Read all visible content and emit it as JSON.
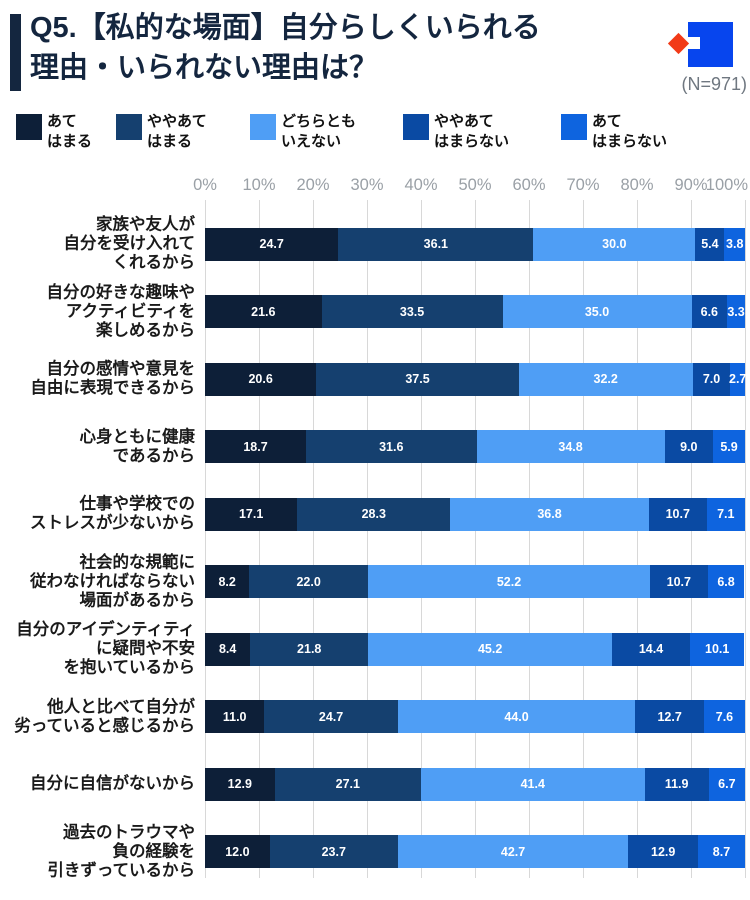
{
  "header": {
    "title_line1": "Q5.【私的な場面】自分らしくいられる",
    "title_line2": "理由・いられない理由は？",
    "sample_label": "(N=971)",
    "accent_color": "#14263f"
  },
  "logo": {
    "square_color": "#0745ee",
    "diamond_color": "#f23a17"
  },
  "legend": {
    "items": [
      {
        "line1": "あて",
        "line2": "はまる"
      },
      {
        "line1": "ややあて",
        "line2": "はまる"
      },
      {
        "line1": "どちらとも",
        "line2": "いえない"
      },
      {
        "line1": "ややあて",
        "line2": "はまらない"
      },
      {
        "line1": "あて",
        "line2": "はまらない"
      }
    ]
  },
  "axis": {
    "ticks": [
      "0%",
      "10%",
      "20%",
      "30%",
      "40%",
      "50%",
      "60%",
      "70%",
      "80%",
      "90%",
      "100%"
    ]
  },
  "chart_data": {
    "type": "bar",
    "orientation": "horizontal-stacked",
    "title": "Q5.【私的な場面】自分らしくいられる理由・いられない理由は？",
    "sample_size": "N=971",
    "xlim": [
      0,
      100
    ],
    "grid": true,
    "legend_position": "top",
    "colors": [
      "#0d1f38",
      "#15406f",
      "#4f9ef5",
      "#0a4aa3",
      "#0e64df"
    ],
    "series_names": [
      "あてはまる",
      "ややあてはまる",
      "どちらともいえない",
      "ややあてはまらない",
      "あてはまらない"
    ],
    "rows": [
      {
        "label_lines": [
          "家族や友人が",
          "自分を受け入れて",
          "くれるから"
        ],
        "values": [
          24.7,
          36.1,
          30.0,
          5.4,
          3.8
        ]
      },
      {
        "label_lines": [
          "自分の好きな趣味や",
          "アクティビティを",
          "楽しめるから"
        ],
        "values": [
          21.6,
          33.5,
          35.0,
          6.6,
          3.3
        ]
      },
      {
        "label_lines": [
          "自分の感情や意見を",
          "自由に表現できるから"
        ],
        "values": [
          20.6,
          37.5,
          32.2,
          7.0,
          2.7
        ]
      },
      {
        "label_lines": [
          "心身ともに健康",
          "であるから"
        ],
        "values": [
          18.7,
          31.6,
          34.8,
          9.0,
          5.9
        ]
      },
      {
        "label_lines": [
          "仕事や学校での",
          "ストレスが少ないから"
        ],
        "values": [
          17.1,
          28.3,
          36.8,
          10.7,
          7.1
        ]
      },
      {
        "label_lines": [
          "社会的な規範に",
          "従わなければならない",
          "場面があるから"
        ],
        "values": [
          8.2,
          22.0,
          52.2,
          10.7,
          6.8
        ]
      },
      {
        "label_lines": [
          "自分のアイデンティティ",
          "に疑問や不安",
          "を抱いているから"
        ],
        "values": [
          8.4,
          21.8,
          45.2,
          14.4,
          10.1
        ]
      },
      {
        "label_lines": [
          "他人と比べて自分が",
          "劣っていると感じるから"
        ],
        "values": [
          11.0,
          24.7,
          44.0,
          12.7,
          7.6
        ]
      },
      {
        "label_lines": [
          "自分に自信がないから"
        ],
        "values": [
          12.9,
          27.1,
          41.4,
          11.9,
          6.7
        ]
      },
      {
        "label_lines": [
          "過去のトラウマや",
          "負の経験を",
          "引きずっているから"
        ],
        "values": [
          12.0,
          23.7,
          42.7,
          12.9,
          8.7
        ]
      }
    ]
  }
}
